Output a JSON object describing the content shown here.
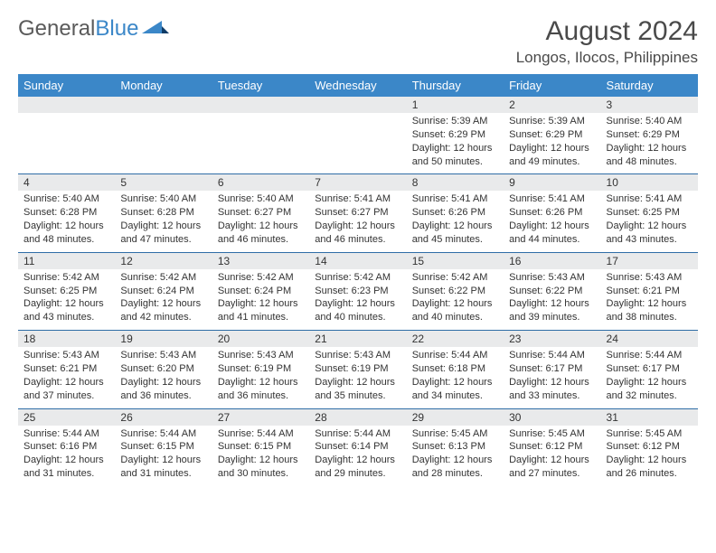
{
  "brand": {
    "part1": "General",
    "part2": "Blue"
  },
  "title": "August 2024",
  "location": "Longos, Ilocos, Philippines",
  "colors": {
    "header_bg": "#3b87c8",
    "header_text": "#ffffff",
    "daynum_bg": "#e9eaeb",
    "sep_line": "#2f6da6",
    "text": "#333333",
    "title_text": "#4a4a4a"
  },
  "day_labels": [
    "Sunday",
    "Monday",
    "Tuesday",
    "Wednesday",
    "Thursday",
    "Friday",
    "Saturday"
  ],
  "weeks": [
    [
      null,
      null,
      null,
      null,
      {
        "n": "1",
        "sunrise": "5:39 AM",
        "sunset": "6:29 PM",
        "dl": "12 hours and 50 minutes."
      },
      {
        "n": "2",
        "sunrise": "5:39 AM",
        "sunset": "6:29 PM",
        "dl": "12 hours and 49 minutes."
      },
      {
        "n": "3",
        "sunrise": "5:40 AM",
        "sunset": "6:29 PM",
        "dl": "12 hours and 48 minutes."
      }
    ],
    [
      {
        "n": "4",
        "sunrise": "5:40 AM",
        "sunset": "6:28 PM",
        "dl": "12 hours and 48 minutes."
      },
      {
        "n": "5",
        "sunrise": "5:40 AM",
        "sunset": "6:28 PM",
        "dl": "12 hours and 47 minutes."
      },
      {
        "n": "6",
        "sunrise": "5:40 AM",
        "sunset": "6:27 PM",
        "dl": "12 hours and 46 minutes."
      },
      {
        "n": "7",
        "sunrise": "5:41 AM",
        "sunset": "6:27 PM",
        "dl": "12 hours and 46 minutes."
      },
      {
        "n": "8",
        "sunrise": "5:41 AM",
        "sunset": "6:26 PM",
        "dl": "12 hours and 45 minutes."
      },
      {
        "n": "9",
        "sunrise": "5:41 AM",
        "sunset": "6:26 PM",
        "dl": "12 hours and 44 minutes."
      },
      {
        "n": "10",
        "sunrise": "5:41 AM",
        "sunset": "6:25 PM",
        "dl": "12 hours and 43 minutes."
      }
    ],
    [
      {
        "n": "11",
        "sunrise": "5:42 AM",
        "sunset": "6:25 PM",
        "dl": "12 hours and 43 minutes."
      },
      {
        "n": "12",
        "sunrise": "5:42 AM",
        "sunset": "6:24 PM",
        "dl": "12 hours and 42 minutes."
      },
      {
        "n": "13",
        "sunrise": "5:42 AM",
        "sunset": "6:24 PM",
        "dl": "12 hours and 41 minutes."
      },
      {
        "n": "14",
        "sunrise": "5:42 AM",
        "sunset": "6:23 PM",
        "dl": "12 hours and 40 minutes."
      },
      {
        "n": "15",
        "sunrise": "5:42 AM",
        "sunset": "6:22 PM",
        "dl": "12 hours and 40 minutes."
      },
      {
        "n": "16",
        "sunrise": "5:43 AM",
        "sunset": "6:22 PM",
        "dl": "12 hours and 39 minutes."
      },
      {
        "n": "17",
        "sunrise": "5:43 AM",
        "sunset": "6:21 PM",
        "dl": "12 hours and 38 minutes."
      }
    ],
    [
      {
        "n": "18",
        "sunrise": "5:43 AM",
        "sunset": "6:21 PM",
        "dl": "12 hours and 37 minutes."
      },
      {
        "n": "19",
        "sunrise": "5:43 AM",
        "sunset": "6:20 PM",
        "dl": "12 hours and 36 minutes."
      },
      {
        "n": "20",
        "sunrise": "5:43 AM",
        "sunset": "6:19 PM",
        "dl": "12 hours and 36 minutes."
      },
      {
        "n": "21",
        "sunrise": "5:43 AM",
        "sunset": "6:19 PM",
        "dl": "12 hours and 35 minutes."
      },
      {
        "n": "22",
        "sunrise": "5:44 AM",
        "sunset": "6:18 PM",
        "dl": "12 hours and 34 minutes."
      },
      {
        "n": "23",
        "sunrise": "5:44 AM",
        "sunset": "6:17 PM",
        "dl": "12 hours and 33 minutes."
      },
      {
        "n": "24",
        "sunrise": "5:44 AM",
        "sunset": "6:17 PM",
        "dl": "12 hours and 32 minutes."
      }
    ],
    [
      {
        "n": "25",
        "sunrise": "5:44 AM",
        "sunset": "6:16 PM",
        "dl": "12 hours and 31 minutes."
      },
      {
        "n": "26",
        "sunrise": "5:44 AM",
        "sunset": "6:15 PM",
        "dl": "12 hours and 31 minutes."
      },
      {
        "n": "27",
        "sunrise": "5:44 AM",
        "sunset": "6:15 PM",
        "dl": "12 hours and 30 minutes."
      },
      {
        "n": "28",
        "sunrise": "5:44 AM",
        "sunset": "6:14 PM",
        "dl": "12 hours and 29 minutes."
      },
      {
        "n": "29",
        "sunrise": "5:45 AM",
        "sunset": "6:13 PM",
        "dl": "12 hours and 28 minutes."
      },
      {
        "n": "30",
        "sunrise": "5:45 AM",
        "sunset": "6:12 PM",
        "dl": "12 hours and 27 minutes."
      },
      {
        "n": "31",
        "sunrise": "5:45 AM",
        "sunset": "6:12 PM",
        "dl": "12 hours and 26 minutes."
      }
    ]
  ]
}
